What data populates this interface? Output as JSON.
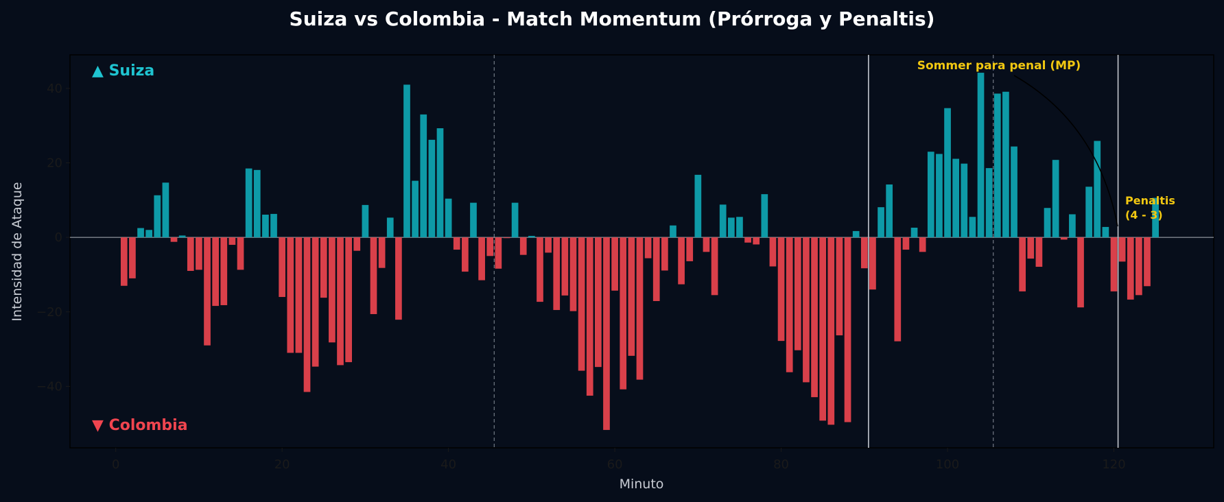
{
  "colors": {
    "background": "#060d1a",
    "plot_background": "#070e1b",
    "positive": "#0e9aa7",
    "negative": "#d9404a",
    "suiza_label": "#1fc4d1",
    "colombia_label": "#f0454f",
    "annotation": "#f2c811",
    "axis_text": "#1a1a1a",
    "label_text": "#c8ccd4"
  },
  "chart_data": {
    "type": "bar",
    "title": "Suiza vs Colombia - Match Momentum (Prórroga y Penaltis)",
    "xlabel": "Minuto",
    "ylabel": "Intensidad de Ataque",
    "xlim": [
      -5.5,
      132
    ],
    "ylim": [
      -56.5,
      49
    ],
    "xticks": [
      0,
      20,
      40,
      60,
      80,
      100,
      120
    ],
    "yticks": [
      -40,
      -20,
      0,
      20,
      40
    ],
    "team_labels": {
      "top": "▲ Suiza",
      "bottom": "▼ Colombia"
    },
    "vlines": [
      {
        "x": 45.5,
        "style": "dashed"
      },
      {
        "x": 90.5,
        "style": "solid"
      },
      {
        "x": 105.5,
        "style": "dashed"
      },
      {
        "x": 120.5,
        "style": "solid"
      }
    ],
    "annotations": [
      {
        "text": "Sommer para penal (MP)",
        "x": 120.5,
        "y": 2
      },
      {
        "text": "Penaltis",
        "x": 121,
        "y": 9
      },
      {
        "text": "(4 - 3)",
        "x": 121,
        "y": 5.5
      }
    ],
    "x": [
      1,
      2,
      3,
      4,
      5,
      6,
      7,
      8,
      9,
      10,
      11,
      12,
      13,
      14,
      15,
      16,
      17,
      18,
      19,
      20,
      21,
      22,
      23,
      24,
      25,
      26,
      27,
      28,
      29,
      30,
      31,
      32,
      33,
      34,
      35,
      36,
      37,
      38,
      39,
      40,
      41,
      42,
      43,
      44,
      45,
      46,
      47,
      48,
      49,
      50,
      51,
      52,
      53,
      54,
      55,
      56,
      57,
      58,
      59,
      60,
      61,
      62,
      63,
      64,
      65,
      66,
      67,
      68,
      69,
      70,
      71,
      72,
      73,
      74,
      75,
      76,
      77,
      78,
      79,
      80,
      81,
      82,
      83,
      84,
      85,
      86,
      87,
      88,
      89,
      90,
      91,
      92,
      93,
      94,
      95,
      96,
      97,
      98,
      99,
      100,
      101,
      102,
      103,
      104,
      105,
      106,
      107,
      108,
      109,
      110,
      111,
      112,
      113,
      114,
      115,
      116,
      117,
      118,
      119,
      120,
      121,
      122,
      123,
      124,
      125
    ],
    "values": [
      -13,
      -11,
      2.5,
      2,
      11.3,
      14.7,
      -1.2,
      0.5,
      -9,
      -8.7,
      -29,
      -18.4,
      -18.2,
      -2,
      -8.7,
      18.5,
      18.1,
      6.1,
      6.3,
      -16,
      -31,
      -31,
      -41.5,
      -34.7,
      -16.2,
      -28.2,
      -34.3,
      -33.5,
      -3.6,
      8.7,
      -20.6,
      -8.2,
      5.3,
      -22.1,
      41,
      15.2,
      33,
      26.2,
      29.3,
      10.4,
      -3.3,
      -9.2,
      9.3,
      -11.5,
      -5,
      -8.4,
      -0.2,
      9.3,
      -4.7,
      0.4,
      -17.3,
      -4.1,
      -19.5,
      -15.6,
      -19.8,
      -35.8,
      -42.5,
      -34.8,
      -51.7,
      -14.3,
      -40.8,
      -31.8,
      -38.2,
      -5.6,
      -17.1,
      -8.9,
      3.2,
      -12.6,
      -6.4,
      16.8,
      -3.9,
      -15.5,
      8.8,
      5.3,
      5.5,
      -1.4,
      -1.9,
      11.6,
      -7.8,
      -27.8,
      -36.2,
      -30.3,
      -38.9,
      -42.9,
      -49.2,
      -50.3,
      -26.3,
      -49.6,
      1.7,
      -8.3,
      -14,
      8.1,
      14.2,
      -27.9,
      -3.3,
      2.6,
      -3.9,
      23,
      22.4,
      34.7,
      21.1,
      19.8,
      5.5,
      44.2,
      18.6,
      38.6,
      39.1,
      24.4,
      -14.5,
      -5.7,
      -7.9,
      7.9,
      20.8,
      -0.6,
      6.2,
      -18.8,
      13.6,
      25.9,
      2.8,
      -14.5,
      -6.5,
      -16.7,
      -15.5,
      -13.1,
      10.6
    ]
  }
}
